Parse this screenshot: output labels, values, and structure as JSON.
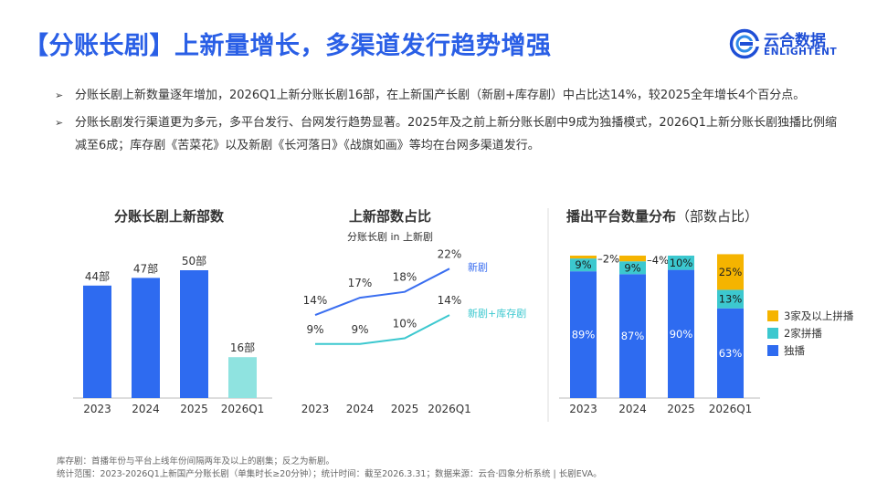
{
  "header": {
    "title": "【分账长剧】上新量增长，多渠道发行趋势增强",
    "logo_cn": "云合数据",
    "logo_en": "ENLIGHTENT"
  },
  "bullets": [
    {
      "marker": "➢",
      "text": "分账长剧上新数量逐年增加，2026Q1上新分账长剧16部，在上新国产长剧（新剧+库存剧）中占比达14%，较2025全年增长4个百分点。"
    },
    {
      "marker": "➢",
      "text": "分账长剧发行渠道更为多元，多平台发行、台网发行趋势显著。2025年及之前上新分账长剧中9成为独播模式，2026Q1上新分账长剧独播比例缩减至6成；库存剧《苦菜花》以及新剧《长河落日》《战旗如画》等均在台网多渠道发行。"
    }
  ],
  "chart_data": [
    {
      "type": "bar",
      "title": "分账长剧上新部数",
      "categories": [
        "2023",
        "2024",
        "2025",
        "2026Q1"
      ],
      "values": [
        44,
        47,
        50,
        16
      ],
      "labels": [
        "44部",
        "47部",
        "50部",
        "16部"
      ],
      "colors": [
        "#2e6bf0",
        "#2e6bf0",
        "#2e6bf0",
        "#8fe3e0"
      ],
      "ylim": [
        0,
        50
      ]
    },
    {
      "type": "line",
      "title": "上新部数占比",
      "subtitle": "分账长剧 in 上新剧",
      "categories": [
        "2023",
        "2024",
        "2025",
        "2026Q1"
      ],
      "series": [
        {
          "name": "新剧",
          "values": [
            14,
            17,
            18,
            22
          ],
          "labels": [
            "14%",
            "17%",
            "18%",
            "22%"
          ],
          "color": "#3a6ef0"
        },
        {
          "name": "新剧+库存剧",
          "values": [
            9,
            9,
            10,
            14
          ],
          "labels": [
            "9%",
            "9%",
            "10%",
            "14%"
          ],
          "color": "#3cc8cf"
        }
      ]
    },
    {
      "type": "bar",
      "stacked": true,
      "title": "播出平台数量分布",
      "title_note": "（部数占比）",
      "categories": [
        "2023",
        "2024",
        "2025",
        "2026Q1"
      ],
      "series": [
        {
          "name": "独播",
          "values": [
            89,
            87,
            90,
            63
          ],
          "labels": [
            "89%",
            "87%",
            "90%",
            "63%"
          ],
          "color": "#2e6bf0"
        },
        {
          "name": "2家拼播",
          "values": [
            9,
            9,
            10,
            13
          ],
          "labels": [
            "9%",
            "9%",
            "10%",
            "13%"
          ],
          "color": "#3cc8cf"
        },
        {
          "name": "3家及以上拼播",
          "values": [
            2,
            4,
            0,
            25
          ],
          "labels": [
            "2%",
            "4%",
            "",
            "25%"
          ],
          "color": "#f5b400"
        }
      ],
      "ylim": [
        0,
        100
      ]
    }
  ],
  "footer": {
    "line1": "库存剧：首播年份与平台上线年份间隔两年及以上的剧集；反之为新剧。",
    "line2": "统计范围：2023-2026Q1上新国产分账长剧（单集时长≥20分钟）；统计时间：截至2026.3.31；数据来源：云合·四象分析系统 | 长剧EVA。"
  }
}
